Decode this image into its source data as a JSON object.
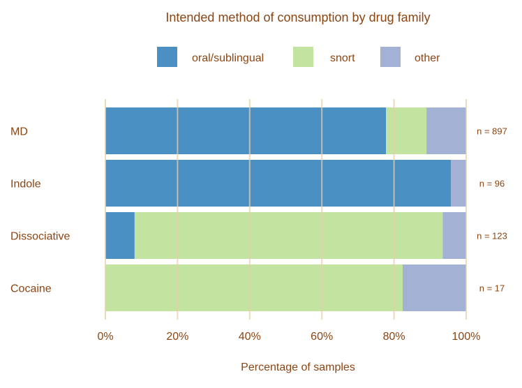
{
  "chart_data": {
    "type": "bar",
    "orientation": "horizontal",
    "stacked": true,
    "title": "Intended method of consumption by drug family",
    "xlabel": "Percentage of samples",
    "ylabel": "",
    "xlim": [
      0,
      100
    ],
    "x_ticks": [
      "0%",
      "20%",
      "40%",
      "60%",
      "80%",
      "100%"
    ],
    "x_tick_values": [
      0,
      20,
      40,
      60,
      80,
      100
    ],
    "grid": true,
    "legend_placement": "top",
    "categories": [
      "MD",
      "Indole",
      "Dissociative",
      "Cocaine"
    ],
    "annotations": [
      "n = 897",
      "n = 96",
      "n = 123",
      "n = 17"
    ],
    "series": [
      {
        "name": "oral/sublingual",
        "color": "#4A90C2",
        "values": [
          77.8,
          95.8,
          8.1,
          0
        ]
      },
      {
        "name": "snort",
        "color": "#C3E3A0",
        "values": [
          11.2,
          0,
          85.4,
          82.4
        ]
      },
      {
        "name": "other",
        "color": "#A2B1D4",
        "values": [
          11.0,
          4.2,
          6.5,
          17.6
        ]
      }
    ],
    "colors": {
      "text": "#8B4513",
      "grid": "#E8CDAA"
    }
  }
}
